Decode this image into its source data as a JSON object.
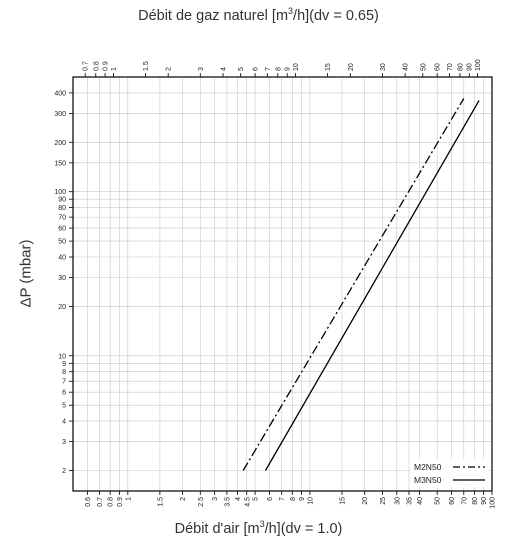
{
  "chart_data": {
    "type": "line",
    "title_top_prefix": "Débit de gaz naturel [m",
    "title_top_sup": "3",
    "title_top_suffix": "/h](dv = 0.65)",
    "xlabel_prefix": "Débit d'air [m",
    "xlabel_sup": "3",
    "xlabel_suffix": "/h](dv = 1.0)",
    "ylabel": "ΔP (mbar)",
    "x_scale": "log",
    "y_scale": "log",
    "xlim": [
      0.5,
      100
    ],
    "ylim": [
      1.5,
      500
    ],
    "grid": true,
    "legend_position": "bottom-right",
    "bottom_ticks": [
      {
        "v": 0.6,
        "t": "0.6"
      },
      {
        "v": 0.7,
        "t": "0.7"
      },
      {
        "v": 0.8,
        "t": "0.8"
      },
      {
        "v": 0.9,
        "t": "0.9"
      },
      {
        "v": 1,
        "t": "1"
      },
      {
        "v": 1.5,
        "t": "1.5"
      },
      {
        "v": 2,
        "t": "2"
      },
      {
        "v": 2.5,
        "t": "2.5"
      },
      {
        "v": 3,
        "t": "3"
      },
      {
        "v": 3.5,
        "t": "3.5"
      },
      {
        "v": 4,
        "t": "4"
      },
      {
        "v": 4.5,
        "t": "4.5"
      },
      {
        "v": 5,
        "t": "5"
      },
      {
        "v": 6,
        "t": "6"
      },
      {
        "v": 7,
        "t": "7"
      },
      {
        "v": 8,
        "t": "8"
      },
      {
        "v": 9,
        "t": "9"
      },
      {
        "v": 10,
        "t": "10"
      },
      {
        "v": 15,
        "t": "15"
      },
      {
        "v": 20,
        "t": "20"
      },
      {
        "v": 25,
        "t": "25"
      },
      {
        "v": 30,
        "t": "30"
      },
      {
        "v": 35,
        "t": "35"
      },
      {
        "v": 40,
        "t": "40"
      },
      {
        "v": 50,
        "t": "50"
      },
      {
        "v": 60,
        "t": "60"
      },
      {
        "v": 70,
        "t": "70"
      },
      {
        "v": 80,
        "t": "80"
      },
      {
        "v": 90,
        "t": "90"
      },
      {
        "v": 100,
        "t": "100"
      }
    ],
    "top_ticks": [
      {
        "v": 0.7,
        "t": "0.7"
      },
      {
        "v": 0.8,
        "t": "0.8"
      },
      {
        "v": 0.9,
        "t": "0.9"
      },
      {
        "v": 1,
        "t": "1"
      },
      {
        "v": 1.5,
        "t": "1.5"
      },
      {
        "v": 2,
        "t": "2"
      },
      {
        "v": 3,
        "t": "3"
      },
      {
        "v": 4,
        "t": "4"
      },
      {
        "v": 5,
        "t": "5"
      },
      {
        "v": 6,
        "t": "6"
      },
      {
        "v": 7,
        "t": "7"
      },
      {
        "v": 8,
        "t": "8"
      },
      {
        "v": 9,
        "t": "9"
      },
      {
        "v": 10,
        "t": "10"
      },
      {
        "v": 15,
        "t": "15"
      },
      {
        "v": 20,
        "t": "20"
      },
      {
        "v": 30,
        "t": "30"
      },
      {
        "v": 40,
        "t": "40"
      },
      {
        "v": 50,
        "t": "50"
      },
      {
        "v": 60,
        "t": "60"
      },
      {
        "v": 70,
        "t": "70"
      },
      {
        "v": 80,
        "t": "80"
      },
      {
        "v": 90,
        "t": "90"
      },
      {
        "v": 100,
        "t": "100"
      }
    ],
    "y_ticks": [
      {
        "v": 2,
        "t": "2"
      },
      {
        "v": 3,
        "t": "3"
      },
      {
        "v": 4,
        "t": "4"
      },
      {
        "v": 5,
        "t": "5"
      },
      {
        "v": 6,
        "t": "6"
      },
      {
        "v": 7,
        "t": "7"
      },
      {
        "v": 8,
        "t": "8"
      },
      {
        "v": 9,
        "t": "9"
      },
      {
        "v": 10,
        "t": "10"
      },
      {
        "v": 20,
        "t": "20"
      },
      {
        "v": 30,
        "t": "30"
      },
      {
        "v": 40,
        "t": "40"
      },
      {
        "v": 50,
        "t": "50"
      },
      {
        "v": 60,
        "t": "60"
      },
      {
        "v": 70,
        "t": "70"
      },
      {
        "v": 80,
        "t": "80"
      },
      {
        "v": 90,
        "t": "90"
      },
      {
        "v": 100,
        "t": "100"
      },
      {
        "v": 150,
        "t": "150"
      },
      {
        "v": 200,
        "t": "200"
      },
      {
        "v": 300,
        "t": "300"
      },
      {
        "v": 400,
        "t": "400"
      }
    ],
    "series": [
      {
        "name": "M2N50",
        "style": "dashdot",
        "points": [
          [
            4.3,
            2
          ],
          [
            70,
            370
          ]
        ]
      },
      {
        "name": "M3N50",
        "style": "solid",
        "points": [
          [
            5.7,
            2
          ],
          [
            85,
            360
          ]
        ]
      }
    ]
  }
}
